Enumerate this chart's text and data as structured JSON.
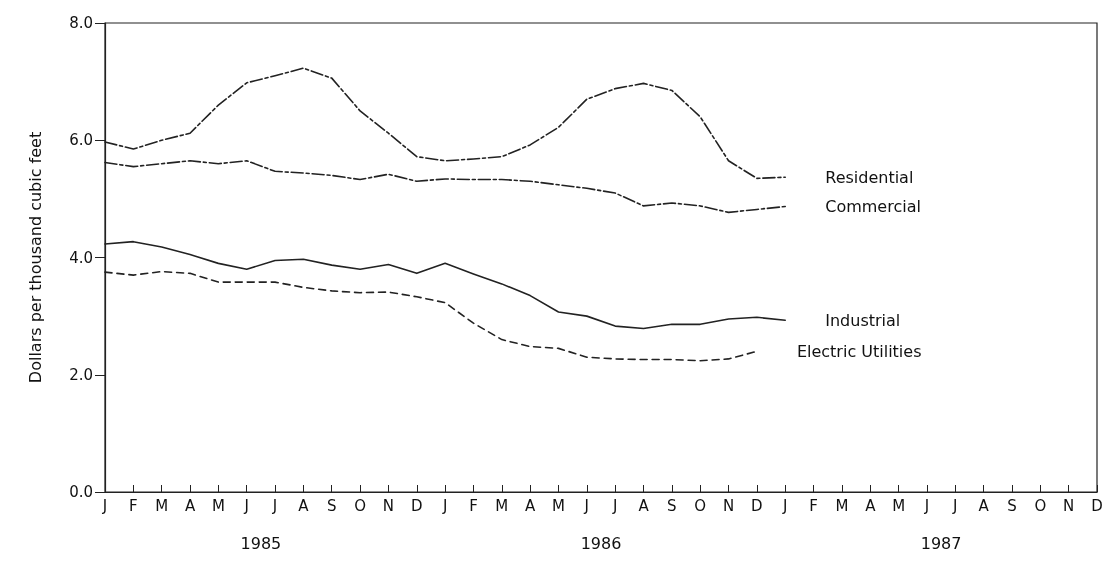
{
  "chart_data": {
    "type": "line",
    "ylabel": "Dollars per thousand cubic feet",
    "categories": [
      "J",
      "F",
      "M",
      "A",
      "M",
      "J",
      "J",
      "A",
      "S",
      "O",
      "N",
      "D",
      "J",
      "F",
      "M",
      "A",
      "M",
      "J",
      "J",
      "A",
      "S",
      "O",
      "N",
      "D",
      "J",
      "F",
      "M",
      "A",
      "M",
      "J",
      "J",
      "A",
      "S",
      "O",
      "N",
      "D"
    ],
    "annotations": [
      "1985",
      "1986",
      "1987"
    ],
    "ylim": [
      0,
      8
    ],
    "yticks": [
      {
        "value": 0,
        "label": "0.0"
      },
      {
        "value": 2,
        "label": "2.0"
      },
      {
        "value": 4,
        "label": "4.0"
      },
      {
        "value": 6,
        "label": "6.0"
      },
      {
        "value": 8,
        "label": "8.0"
      }
    ],
    "grid": false,
    "legend": false,
    "marker": "none",
    "series": [
      {
        "name": "Residential",
        "color": "#222222",
        "line_style": "dashed",
        "values": [
          5.97,
          5.85,
          6.0,
          6.12,
          6.6,
          6.98,
          7.1,
          7.23,
          7.06,
          6.5,
          6.12,
          5.72,
          5.65,
          5.68,
          5.72,
          5.92,
          6.22,
          6.7,
          6.88,
          6.97,
          6.85,
          6.4,
          5.65,
          5.35,
          5.37,
          null,
          null,
          null,
          null,
          null,
          null,
          null,
          null,
          null,
          null,
          null
        ]
      },
      {
        "name": "Commercial",
        "color": "#222222",
        "line_style": "dashed",
        "values": [
          5.62,
          5.55,
          5.6,
          5.65,
          5.6,
          5.65,
          5.47,
          5.44,
          5.4,
          5.33,
          5.42,
          5.3,
          5.34,
          5.33,
          5.33,
          5.3,
          5.24,
          5.18,
          5.1,
          4.88,
          4.93,
          4.88,
          4.77,
          4.82,
          4.87,
          null,
          null,
          null,
          null,
          null,
          null,
          null,
          null,
          null,
          null,
          null
        ]
      },
      {
        "name": "Industrial",
        "color": "#222222",
        "line_style": "solid",
        "values": [
          4.23,
          4.27,
          4.18,
          4.05,
          3.9,
          3.8,
          3.95,
          3.97,
          3.87,
          3.8,
          3.88,
          3.73,
          3.9,
          3.72,
          3.55,
          3.35,
          3.07,
          3.0,
          2.83,
          2.79,
          2.86,
          2.86,
          2.95,
          2.98,
          2.93,
          null,
          null,
          null,
          null,
          null,
          null,
          null,
          null,
          null,
          null,
          null
        ]
      },
      {
        "name": "Electric Utilities",
        "color": "#222222",
        "line_style": "dotted",
        "values": [
          3.75,
          3.7,
          3.76,
          3.73,
          3.58,
          3.58,
          3.58,
          3.49,
          3.43,
          3.4,
          3.41,
          3.33,
          3.23,
          2.88,
          2.6,
          2.48,
          2.45,
          2.3,
          2.27,
          2.26,
          2.26,
          2.24,
          2.27,
          2.4,
          null,
          null,
          null,
          null,
          null,
          null,
          null,
          null,
          null,
          null,
          null,
          null
        ]
      }
    ]
  }
}
